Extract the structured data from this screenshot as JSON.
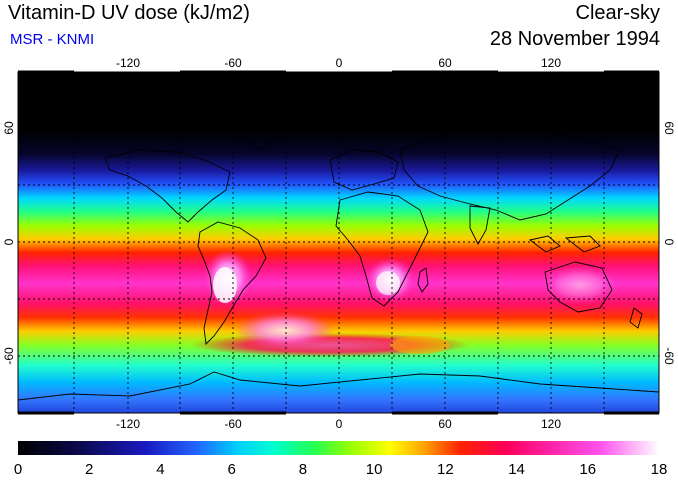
{
  "header": {
    "title": "Vitamin-D UV dose (kJ/m2)",
    "source": "MSR - KNMI",
    "condition": "Clear-sky",
    "date": "28 November 1994"
  },
  "map": {
    "lon_ticks": [
      "-120",
      "-60",
      "0",
      "60",
      "120"
    ],
    "lat_ticks": [
      "60",
      "0",
      "-60"
    ],
    "lat_ticks_right": [
      "60",
      "0",
      "-60"
    ]
  },
  "colorbar": {
    "labels": [
      "0",
      "2",
      "4",
      "6",
      "8",
      "10",
      "12",
      "14",
      "16",
      "18"
    ],
    "min": 0,
    "max": 18
  },
  "colors": {
    "palette": [
      "#000000",
      "#0a0a40",
      "#1a1aa0",
      "#2255ff",
      "#00bfff",
      "#00ffd0",
      "#22ff66",
      "#88ff00",
      "#ffff00",
      "#ffaa00",
      "#ff3300",
      "#ff0044",
      "#ff1199",
      "#ff44dd",
      "#ffbbff",
      "#ffffff"
    ]
  }
}
